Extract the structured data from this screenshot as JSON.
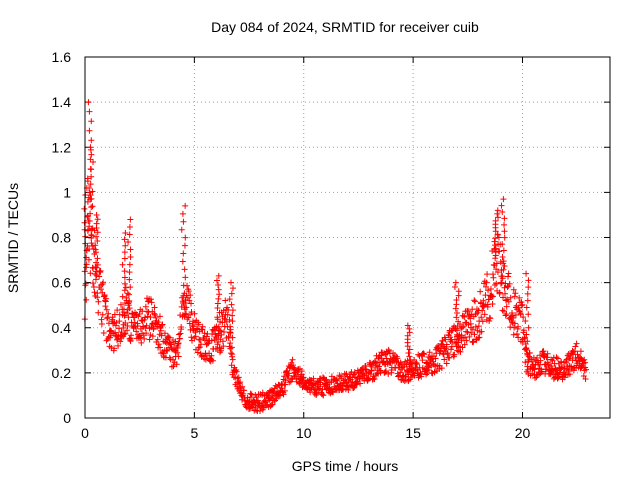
{
  "chart_data": {
    "type": "scatter",
    "title": "Day 084 of 2024, SRMTID for receiver cuib",
    "xlabel": "GPS time / hours",
    "ylabel": "SRMTID / TECUs",
    "xlim": [
      0,
      24
    ],
    "ylim": [
      0,
      1.6
    ],
    "grid": true,
    "marker": "+",
    "color": "#ff0000",
    "x_ticks": [
      0,
      5,
      10,
      15,
      20
    ],
    "x_tick_labels": [
      "0",
      "5",
      "10",
      "15",
      "20"
    ],
    "y_ticks": [
      0,
      0.2,
      0.4,
      0.6,
      0.8,
      1,
      1.2,
      1.4,
      1.6
    ],
    "y_tick_labels": [
      "0",
      "0.2",
      "0.4",
      "0.6",
      "0.8",
      "1",
      "1.2",
      "1.4",
      "1.6"
    ],
    "series": [
      {
        "name": "SRMTID",
        "trend_x": [
          0,
          0.1,
          0.2,
          0.4,
          0.7,
          1.0,
          1.3,
          1.6,
          1.9,
          2.2,
          2.6,
          3.0,
          3.4,
          3.8,
          4.2,
          4.6,
          5.0,
          5.4,
          5.8,
          6.2,
          6.5,
          6.8,
          7.2,
          7.6,
          8.0,
          8.5,
          9.0,
          9.5,
          10.0,
          10.5,
          11.0,
          11.5,
          12.0,
          12.5,
          13.0,
          13.5,
          14.0,
          14.5,
          15.0,
          15.5,
          16.0,
          16.5,
          17.0,
          17.5,
          18.0,
          18.5,
          18.8,
          19.1,
          19.4,
          19.7,
          20.0,
          20.2,
          20.6,
          21.0,
          21.5,
          22.0,
          22.5,
          22.9
        ],
        "trend_y": [
          0.55,
          0.75,
          0.85,
          0.7,
          0.55,
          0.42,
          0.38,
          0.4,
          0.48,
          0.38,
          0.42,
          0.45,
          0.38,
          0.3,
          0.28,
          0.55,
          0.38,
          0.33,
          0.32,
          0.38,
          0.45,
          0.2,
          0.1,
          0.07,
          0.07,
          0.09,
          0.13,
          0.22,
          0.17,
          0.14,
          0.14,
          0.15,
          0.16,
          0.18,
          0.2,
          0.24,
          0.25,
          0.2,
          0.22,
          0.24,
          0.25,
          0.3,
          0.35,
          0.4,
          0.45,
          0.55,
          0.72,
          0.6,
          0.52,
          0.45,
          0.42,
          0.25,
          0.22,
          0.25,
          0.22,
          0.22,
          0.28,
          0.2
        ],
        "spike_peaks": [
          {
            "x": 0.05,
            "y": 1.05
          },
          {
            "x": 0.2,
            "y": 1.4
          },
          {
            "x": 0.3,
            "y": 1.2
          },
          {
            "x": 0.5,
            "y": 0.9
          },
          {
            "x": 1.8,
            "y": 0.82
          },
          {
            "x": 2.0,
            "y": 0.88
          },
          {
            "x": 4.5,
            "y": 0.94
          },
          {
            "x": 6.1,
            "y": 0.63
          },
          {
            "x": 6.7,
            "y": 0.6
          },
          {
            "x": 14.8,
            "y": 0.41
          },
          {
            "x": 17.0,
            "y": 0.6
          },
          {
            "x": 18.8,
            "y": 0.92
          },
          {
            "x": 19.1,
            "y": 0.97
          },
          {
            "x": 20.2,
            "y": 0.64
          }
        ]
      }
    ]
  }
}
